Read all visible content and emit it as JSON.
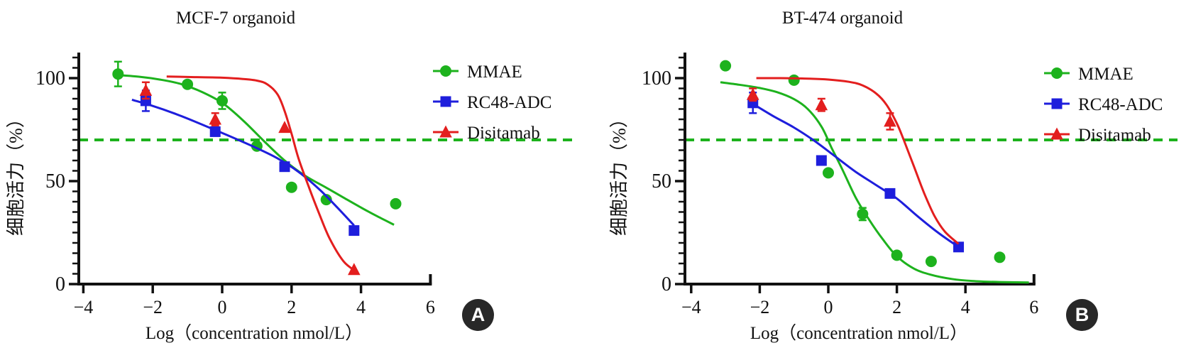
{
  "colors": {
    "green": "#1DB21D",
    "blue": "#1E1EDC",
    "red": "#E31E1E",
    "axis": "#111111",
    "text": "#111111",
    "badge_bg": "#282828",
    "badge_text": "#FFFFFF"
  },
  "chart_data": [
    {
      "type": "scatter",
      "subtype": "dose-response-curves",
      "title": "MCF-7 organoid",
      "panel_label": "A",
      "xlabel": "Log（concentration nmol/L）",
      "ylabel": "细胞活力（%）",
      "xlim": [
        -4,
        6
      ],
      "ylim": [
        0,
        110
      ],
      "xticks": [
        -4,
        -2,
        0,
        2,
        4,
        6
      ],
      "xtick_labels": [
        "−4",
        "−2",
        "0",
        "2",
        "4",
        "6"
      ],
      "yticks": [
        0,
        50,
        100
      ],
      "ytick_labels": [
        "0",
        "50",
        "100"
      ],
      "grid": false,
      "legend_position": "right",
      "reference_line": {
        "y": 70,
        "style": "dashed",
        "color_key": "green"
      },
      "series": [
        {
          "name": "MMAE",
          "marker": "circle",
          "color_key": "green",
          "points": [
            {
              "x": -3,
              "y": 102,
              "err": 6
            },
            {
              "x": -1,
              "y": 97
            },
            {
              "x": 0,
              "y": 89,
              "err": 4
            },
            {
              "x": 1,
              "y": 67
            },
            {
              "x": 2,
              "y": 47
            },
            {
              "x": 3,
              "y": 41
            },
            {
              "x": 5,
              "y": 39
            }
          ],
          "curve": [
            [
              -3,
              101.5
            ],
            [
              -2.4,
              100.7
            ],
            [
              -1.8,
              99.3
            ],
            [
              -1.2,
              97.2
            ],
            [
              -0.6,
              93.4
            ],
            [
              0,
              88
            ],
            [
              0.6,
              79.5
            ],
            [
              1.2,
              69.5
            ],
            [
              1.8,
              60
            ],
            [
              2.4,
              52.5
            ],
            [
              3,
              46.8
            ],
            [
              3.6,
              41
            ],
            [
              4.2,
              35.3
            ],
            [
              4.6,
              31.8
            ],
            [
              4.95,
              28.8
            ]
          ]
        },
        {
          "name": "RC48-ADC",
          "marker": "square",
          "color_key": "blue",
          "points": [
            {
              "x": -2.2,
              "y": 89,
              "err": 5
            },
            {
              "x": -0.2,
              "y": 74
            },
            {
              "x": 1.8,
              "y": 57
            },
            {
              "x": 3.8,
              "y": 26
            }
          ],
          "curve": [
            [
              -2.6,
              89.5
            ],
            [
              -2,
              86.5
            ],
            [
              -1.4,
              83
            ],
            [
              -0.8,
              79
            ],
            [
              -0.2,
              74.8
            ],
            [
              0.4,
              70.5
            ],
            [
              1,
              66
            ],
            [
              1.6,
              61
            ],
            [
              2.2,
              54.5
            ],
            [
              2.8,
              46
            ],
            [
              3.3,
              37.5
            ],
            [
              3.8,
              28.5
            ]
          ]
        },
        {
          "name": "Disitamab",
          "marker": "triangle",
          "color_key": "red",
          "points": [
            {
              "x": -2.2,
              "y": 94,
              "err": 4
            },
            {
              "x": -0.2,
              "y": 80,
              "err": 3
            },
            {
              "x": 1.8,
              "y": 76
            },
            {
              "x": 3.8,
              "y": 7
            }
          ],
          "curve": [
            [
              -1.6,
              100.8
            ],
            [
              -0.8,
              100.5
            ],
            [
              0,
              100.2
            ],
            [
              0.6,
              99.6
            ],
            [
              1,
              98.8
            ],
            [
              1.3,
              97
            ],
            [
              1.6,
              92
            ],
            [
              1.8,
              84
            ],
            [
              2,
              73
            ],
            [
              2.2,
              61
            ],
            [
              2.5,
              47
            ],
            [
              2.8,
              34
            ],
            [
              3.1,
              22
            ],
            [
              3.5,
              11
            ],
            [
              3.85,
              6.2
            ]
          ]
        }
      ]
    },
    {
      "type": "scatter",
      "subtype": "dose-response-curves",
      "title": "BT-474 organoid",
      "panel_label": "B",
      "xlabel": "Log（concentration nmol/L）",
      "ylabel": "细胞活力（%）",
      "xlim": [
        -4,
        6
      ],
      "ylim": [
        0,
        110
      ],
      "xticks": [
        -4,
        -2,
        0,
        2,
        4,
        6
      ],
      "xtick_labels": [
        "−4",
        "−2",
        "0",
        "2",
        "4",
        "6"
      ],
      "yticks": [
        0,
        50,
        100
      ],
      "ytick_labels": [
        "0",
        "50",
        "100"
      ],
      "grid": false,
      "legend_position": "right",
      "reference_line": {
        "y": 70,
        "style": "dashed",
        "color_key": "green"
      },
      "series": [
        {
          "name": "MMAE",
          "marker": "circle",
          "color_key": "green",
          "points": [
            {
              "x": -3,
              "y": 106
            },
            {
              "x": -1,
              "y": 99
            },
            {
              "x": 0,
              "y": 54
            },
            {
              "x": 1,
              "y": 34,
              "err": 3
            },
            {
              "x": 2,
              "y": 14
            },
            {
              "x": 3,
              "y": 11
            },
            {
              "x": 5,
              "y": 13
            }
          ],
          "curve": [
            [
              -3.15,
              98
            ],
            [
              -2.6,
              96.8
            ],
            [
              -2,
              95.2
            ],
            [
              -1.5,
              93.2
            ],
            [
              -1,
              89.8
            ],
            [
              -0.6,
              85
            ],
            [
              -0.2,
              76.5
            ],
            [
              0.1,
              66
            ],
            [
              0.4,
              56
            ],
            [
              0.8,
              42
            ],
            [
              1.2,
              31
            ],
            [
              1.6,
              21.5
            ],
            [
              2,
              13.5
            ],
            [
              2.5,
              7.5
            ],
            [
              3,
              4.5
            ],
            [
              3.6,
              2.5
            ],
            [
              4.2,
              1.5
            ],
            [
              5,
              1
            ],
            [
              5.85,
              0.8
            ]
          ]
        },
        {
          "name": "RC48-ADC",
          "marker": "square",
          "color_key": "blue",
          "points": [
            {
              "x": -2.2,
              "y": 88,
              "err": 5
            },
            {
              "x": -0.2,
              "y": 60
            },
            {
              "x": 1.8,
              "y": 44
            },
            {
              "x": 3.8,
              "y": 18
            }
          ],
          "curve": [
            [
              -2.2,
              87.5
            ],
            [
              -1.6,
              81.5
            ],
            [
              -1,
              76
            ],
            [
              -0.4,
              69.5
            ],
            [
              0.2,
              62
            ],
            [
              0.8,
              54.5
            ],
            [
              1.4,
              48
            ],
            [
              2,
              41.5
            ],
            [
              2.6,
              33
            ],
            [
              3.2,
              25
            ],
            [
              3.8,
              18
            ]
          ]
        },
        {
          "name": "Disitamab",
          "marker": "triangle",
          "color_key": "red",
          "points": [
            {
              "x": -2.2,
              "y": 92,
              "err": 3
            },
            {
              "x": -0.2,
              "y": 87,
              "err": 3
            },
            {
              "x": 1.8,
              "y": 79,
              "err": 4
            },
            {
              "x": 3.8,
              "y": 18,
              "hidden": true
            }
          ],
          "curve": [
            [
              -2.1,
              100
            ],
            [
              -1.4,
              100
            ],
            [
              -0.7,
              99.8
            ],
            [
              0,
              99.3
            ],
            [
              0.6,
              98.2
            ],
            [
              1,
              96.5
            ],
            [
              1.4,
              92.5
            ],
            [
              1.7,
              87
            ],
            [
              2,
              78
            ],
            [
              2.2,
              70
            ],
            [
              2.5,
              57
            ],
            [
              2.8,
              44
            ],
            [
              3.1,
              33
            ],
            [
              3.4,
              25.5
            ],
            [
              3.8,
              19.5
            ]
          ]
        }
      ]
    }
  ]
}
